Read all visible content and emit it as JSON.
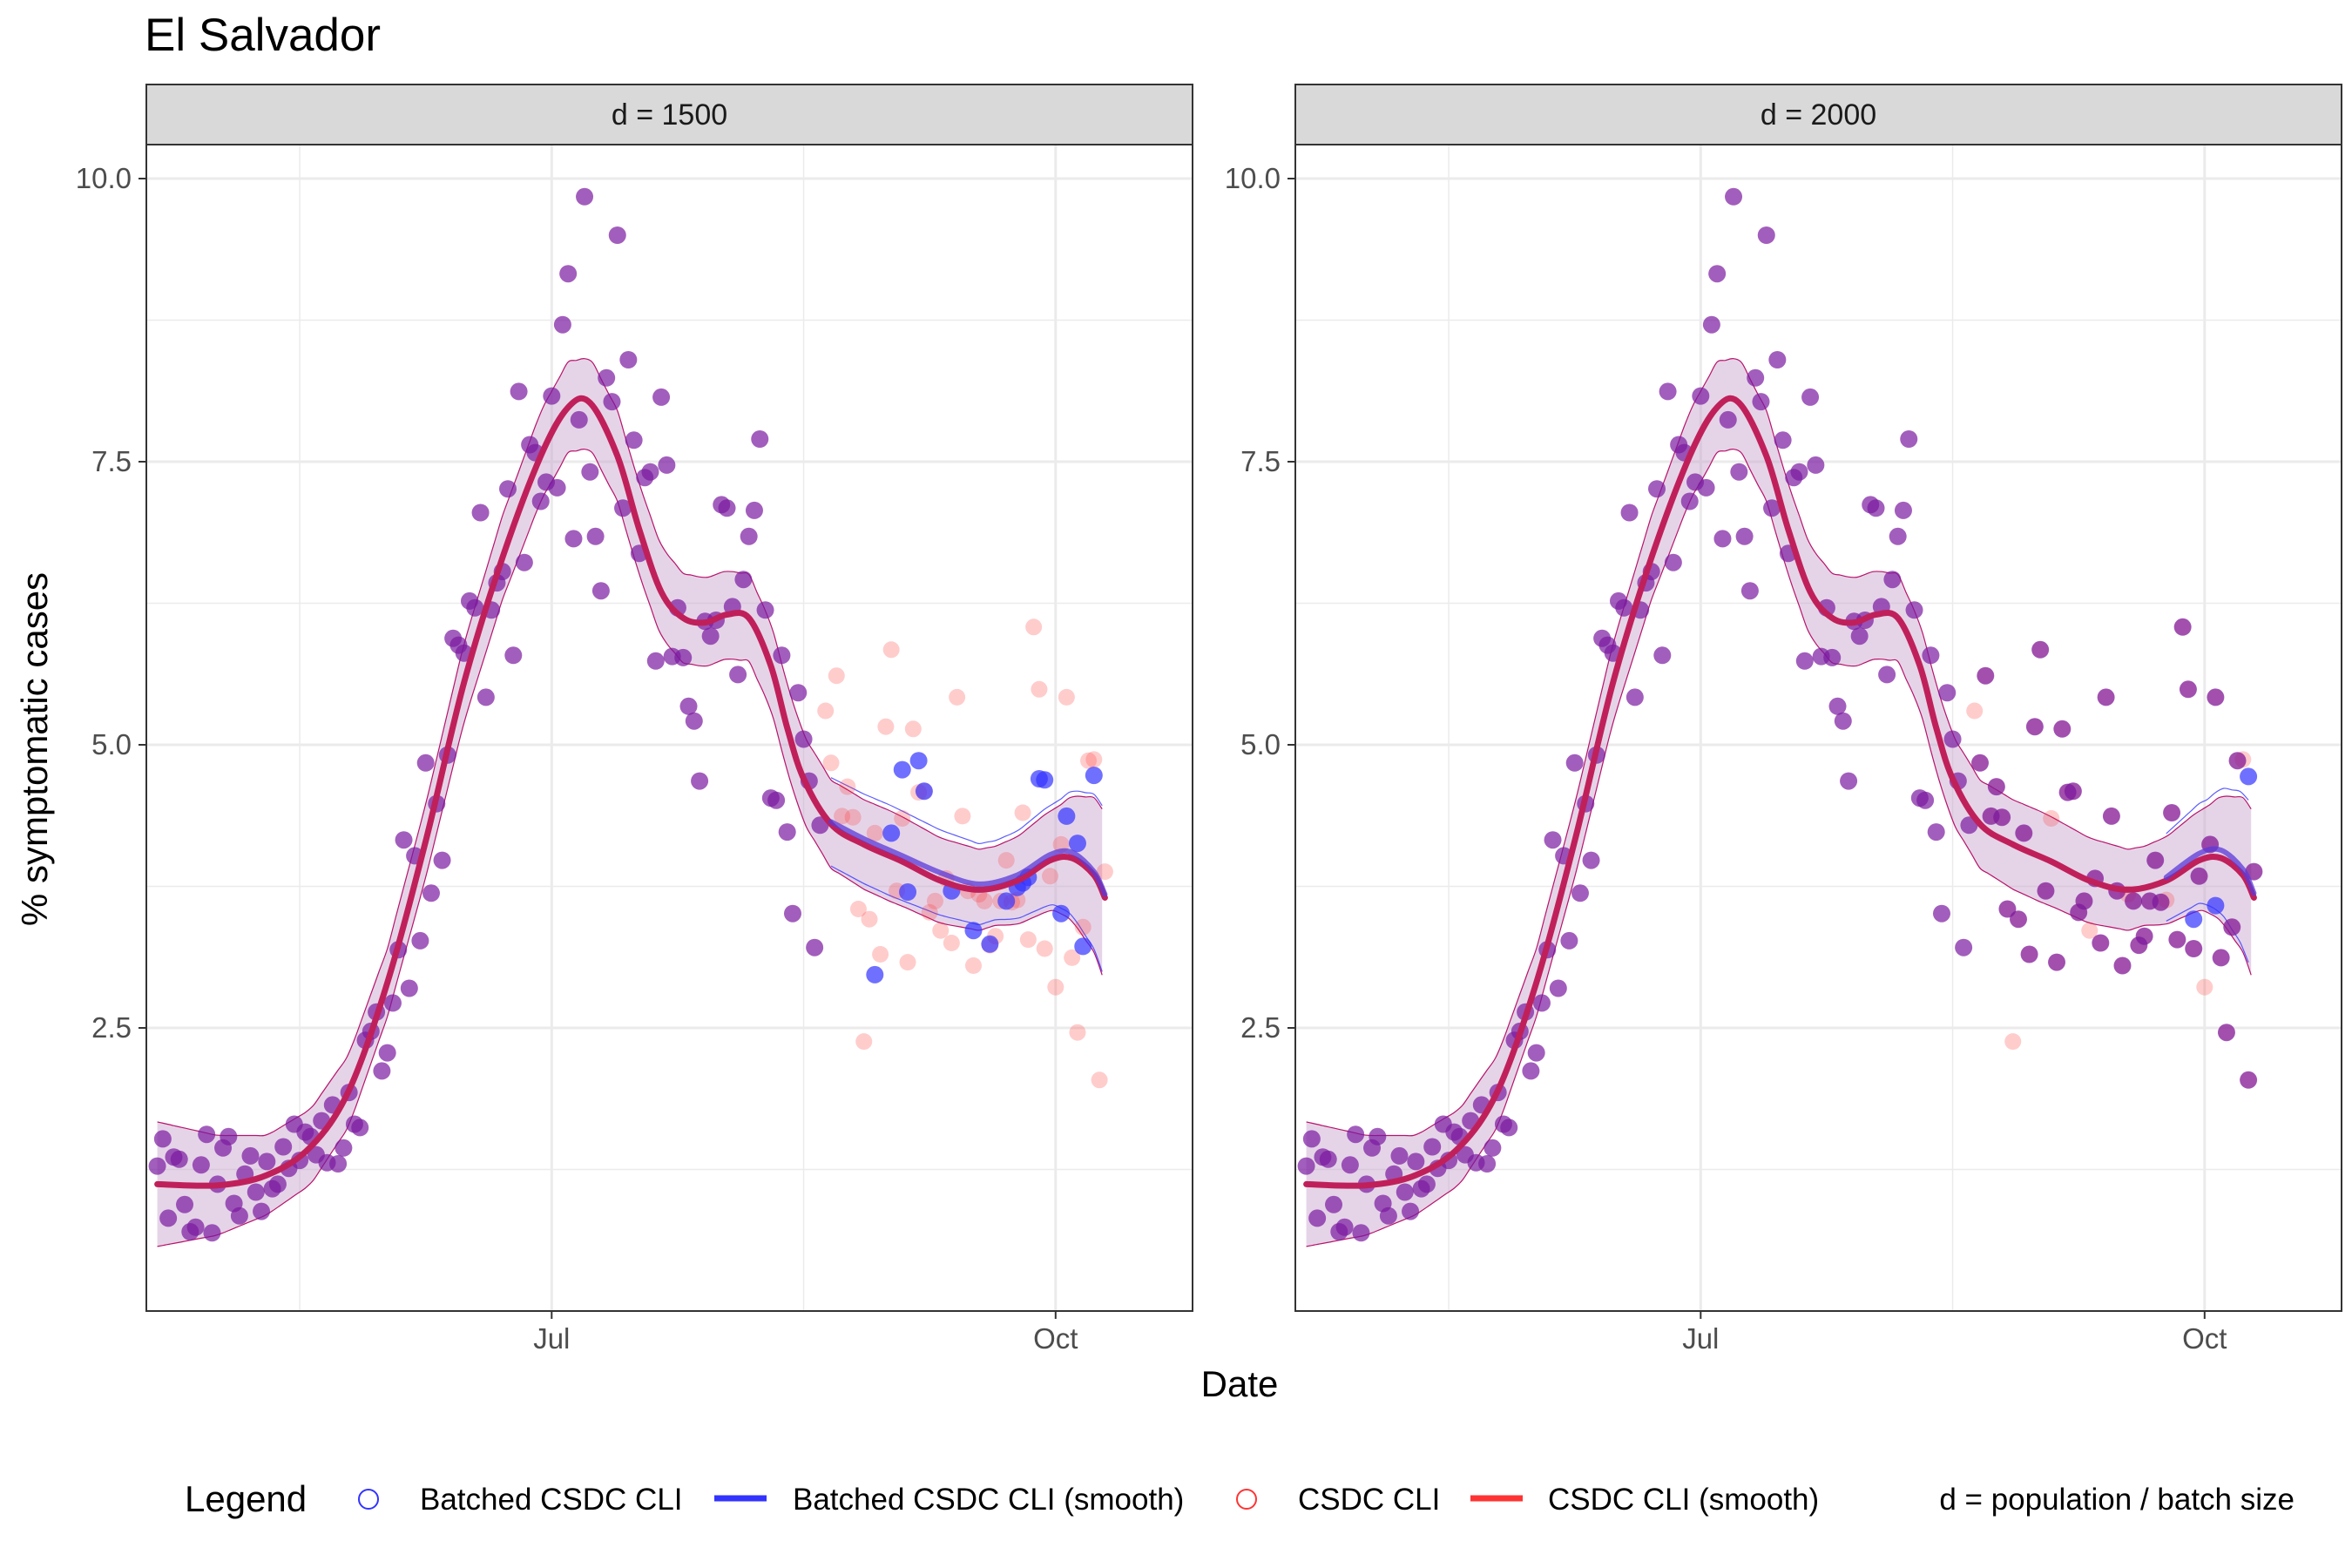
{
  "chart_data": {
    "type": "scatter",
    "title": "El Salvador",
    "xlabel": "Date",
    "ylabel": "% symptomatic cases",
    "x_ticks": [
      "Jul",
      "Oct"
    ],
    "y_ticks": [
      "2.5",
      "5.0",
      "7.5",
      "10.0"
    ],
    "ylim": [
      0,
      10.3
    ],
    "grid": true,
    "legend": {
      "title": "Legend",
      "position": "bottom",
      "note": "d = population / batch size",
      "entries": [
        {
          "label": "Batched CSDC CLI",
          "symbol": "point",
          "color": "#3333ff"
        },
        {
          "label": "Batched CSDC CLI (smooth)",
          "symbol": "line",
          "color": "#3333ff"
        },
        {
          "label": "CSDC CLI",
          "symbol": "point",
          "color": "#ff3333"
        },
        {
          "label": "CSDC CLI (smooth)",
          "symbol": "line",
          "color": "#ff3333"
        }
      ]
    },
    "colors": {
      "batched": "#3333ff",
      "csdc": "#ff3333",
      "overlap": "#7a1aa0",
      "band": "#c6a0cc"
    },
    "x_range": [
      "2020-04-18",
      "2020-10-26"
    ],
    "csdc_points": [
      [
        "2020-04-20",
        1.28
      ],
      [
        "2020-04-21",
        1.52
      ],
      [
        "2020-04-22",
        0.82
      ],
      [
        "2020-04-23",
        1.36
      ],
      [
        "2020-04-24",
        1.34
      ],
      [
        "2020-04-25",
        0.94
      ],
      [
        "2020-04-26",
        0.7
      ],
      [
        "2020-04-27",
        0.74
      ],
      [
        "2020-04-28",
        1.29
      ],
      [
        "2020-04-29",
        1.56
      ],
      [
        "2020-04-30",
        0.69
      ],
      [
        "2020-05-01",
        1.12
      ],
      [
        "2020-05-02",
        1.44
      ],
      [
        "2020-05-03",
        1.54
      ],
      [
        "2020-05-04",
        0.95
      ],
      [
        "2020-05-05",
        0.84
      ],
      [
        "2020-05-06",
        1.21
      ],
      [
        "2020-05-07",
        1.37
      ],
      [
        "2020-05-08",
        1.05
      ],
      [
        "2020-05-09",
        0.88
      ],
      [
        "2020-05-10",
        1.32
      ],
      [
        "2020-05-11",
        1.08
      ],
      [
        "2020-05-12",
        1.12
      ],
      [
        "2020-05-13",
        1.45
      ],
      [
        "2020-05-14",
        1.26
      ],
      [
        "2020-05-15",
        1.65
      ],
      [
        "2020-05-16",
        1.33
      ],
      [
        "2020-05-17",
        1.58
      ],
      [
        "2020-05-18",
        1.54
      ],
      [
        "2020-05-19",
        1.38
      ],
      [
        "2020-05-20",
        1.68
      ],
      [
        "2020-05-21",
        1.31
      ],
      [
        "2020-05-22",
        1.82
      ],
      [
        "2020-05-23",
        1.3
      ],
      [
        "2020-05-24",
        1.44
      ],
      [
        "2020-05-25",
        1.93
      ],
      [
        "2020-05-26",
        1.65
      ],
      [
        "2020-05-27",
        1.62
      ],
      [
        "2020-05-28",
        2.39
      ],
      [
        "2020-05-29",
        2.47
      ],
      [
        "2020-05-30",
        2.64
      ],
      [
        "2020-05-31",
        2.12
      ],
      [
        "2020-06-01",
        2.28
      ],
      [
        "2020-06-02",
        2.72
      ],
      [
        "2020-06-03",
        3.19
      ],
      [
        "2020-06-04",
        4.16
      ],
      [
        "2020-06-05",
        2.85
      ],
      [
        "2020-06-06",
        4.02
      ],
      [
        "2020-06-07",
        3.27
      ],
      [
        "2020-06-08",
        4.84
      ],
      [
        "2020-06-09",
        3.69
      ],
      [
        "2020-06-10",
        4.48
      ],
      [
        "2020-06-11",
        3.98
      ],
      [
        "2020-06-12",
        4.91
      ],
      [
        "2020-06-13",
        5.94
      ],
      [
        "2020-06-14",
        5.88
      ],
      [
        "2020-06-15",
        5.81
      ],
      [
        "2020-06-16",
        6.27
      ],
      [
        "2020-06-17",
        6.21
      ],
      [
        "2020-06-18",
        7.05
      ],
      [
        "2020-06-19",
        5.42
      ],
      [
        "2020-06-20",
        6.19
      ],
      [
        "2020-06-21",
        6.43
      ],
      [
        "2020-06-22",
        6.53
      ],
      [
        "2020-06-23",
        7.26
      ],
      [
        "2020-06-24",
        5.79
      ],
      [
        "2020-06-25",
        8.12
      ],
      [
        "2020-06-26",
        6.61
      ],
      [
        "2020-06-27",
        7.65
      ],
      [
        "2020-06-28",
        7.58
      ],
      [
        "2020-06-29",
        7.15
      ],
      [
        "2020-06-30",
        7.32
      ],
      [
        "2020-07-01",
        8.08
      ],
      [
        "2020-07-02",
        7.27
      ],
      [
        "2020-07-03",
        8.71
      ],
      [
        "2020-07-04",
        9.16
      ],
      [
        "2020-07-05",
        6.82
      ],
      [
        "2020-07-06",
        7.87
      ],
      [
        "2020-07-07",
        9.84
      ],
      [
        "2020-07-08",
        7.41
      ],
      [
        "2020-07-09",
        6.84
      ],
      [
        "2020-07-10",
        6.36
      ],
      [
        "2020-07-11",
        8.24
      ],
      [
        "2020-07-12",
        8.03
      ],
      [
        "2020-07-13",
        9.5
      ],
      [
        "2020-07-14",
        7.09
      ],
      [
        "2020-07-15",
        8.4
      ],
      [
        "2020-07-16",
        7.69
      ],
      [
        "2020-07-17",
        6.69
      ],
      [
        "2020-07-18",
        7.36
      ],
      [
        "2020-07-19",
        7.41
      ],
      [
        "2020-07-20",
        5.74
      ],
      [
        "2020-07-21",
        8.07
      ],
      [
        "2020-07-22",
        7.47
      ],
      [
        "2020-07-23",
        5.78
      ],
      [
        "2020-07-24",
        6.21
      ],
      [
        "2020-07-25",
        5.77
      ],
      [
        "2020-07-26",
        5.34
      ],
      [
        "2020-07-27",
        5.21
      ],
      [
        "2020-07-28",
        4.68
      ],
      [
        "2020-07-29",
        6.09
      ],
      [
        "2020-07-30",
        5.96
      ],
      [
        "2020-07-31",
        6.1
      ],
      [
        "2020-08-01",
        7.12
      ],
      [
        "2020-08-02",
        7.09
      ],
      [
        "2020-08-03",
        6.22
      ],
      [
        "2020-08-04",
        5.62
      ],
      [
        "2020-08-05",
        6.46
      ],
      [
        "2020-08-06",
        6.84
      ],
      [
        "2020-08-07",
        7.07
      ],
      [
        "2020-08-08",
        7.7
      ],
      [
        "2020-08-09",
        6.19
      ],
      [
        "2020-08-10",
        4.53
      ],
      [
        "2020-08-11",
        4.51
      ],
      [
        "2020-08-12",
        5.79
      ],
      [
        "2020-08-13",
        4.23
      ],
      [
        "2020-08-14",
        3.51
      ],
      [
        "2020-08-15",
        5.46
      ],
      [
        "2020-08-16",
        5.05
      ],
      [
        "2020-08-17",
        4.68
      ],
      [
        "2020-08-18",
        3.21
      ],
      [
        "2020-08-19",
        4.29
      ],
      [
        "2020-08-20",
        5.3
      ],
      [
        "2020-08-21",
        4.84
      ],
      [
        "2020-08-22",
        5.61
      ],
      [
        "2020-08-23",
        4.37
      ],
      [
        "2020-08-24",
        4.63
      ],
      [
        "2020-08-25",
        4.36
      ],
      [
        "2020-08-26",
        3.55
      ],
      [
        "2020-08-27",
        2.38
      ],
      [
        "2020-08-28",
        3.46
      ],
      [
        "2020-08-29",
        4.22
      ],
      [
        "2020-08-30",
        3.15
      ],
      [
        "2020-08-31",
        5.16
      ],
      [
        "2020-09-01",
        5.84
      ],
      [
        "2020-09-02",
        3.71
      ],
      [
        "2020-09-03",
        4.35
      ],
      [
        "2020-09-04",
        3.08
      ],
      [
        "2020-09-05",
        5.14
      ],
      [
        "2020-09-06",
        4.58
      ],
      [
        "2020-09-07",
        4.59
      ],
      [
        "2020-09-08",
        3.52
      ],
      [
        "2020-09-09",
        3.62
      ],
      [
        "2020-09-10",
        3.36
      ],
      [
        "2020-09-11",
        3.82
      ],
      [
        "2020-09-12",
        3.25
      ],
      [
        "2020-09-13",
        5.42
      ],
      [
        "2020-09-14",
        4.37
      ],
      [
        "2020-09-15",
        3.71
      ],
      [
        "2020-09-16",
        3.05
      ],
      [
        "2020-09-17",
        3.68
      ],
      [
        "2020-09-18",
        3.62
      ],
      [
        "2020-09-19",
        3.23
      ],
      [
        "2020-09-20",
        3.31
      ],
      [
        "2020-09-21",
        3.62
      ],
      [
        "2020-09-22",
        3.98
      ],
      [
        "2020-09-23",
        3.61
      ],
      [
        "2020-09-24",
        3.63
      ],
      [
        "2020-09-25",
        4.4
      ],
      [
        "2020-09-26",
        3.28
      ],
      [
        "2020-09-27",
        6.04
      ],
      [
        "2020-09-28",
        5.49
      ],
      [
        "2020-09-29",
        3.2
      ],
      [
        "2020-09-30",
        3.84
      ],
      [
        "2020-10-01",
        2.86
      ],
      [
        "2020-10-02",
        4.12
      ],
      [
        "2020-10-03",
        5.42
      ],
      [
        "2020-10-04",
        3.12
      ],
      [
        "2020-10-05",
        2.46
      ],
      [
        "2020-10-06",
        3.39
      ],
      [
        "2020-10-07",
        4.86
      ],
      [
        "2020-10-08",
        4.87
      ],
      [
        "2020-10-09",
        2.04
      ],
      [
        "2020-10-10",
        3.88
      ]
    ],
    "batched_points": {
      "d = 1500": [
        [
          "2020-08-29",
          2.97
        ],
        [
          "2020-09-01",
          4.22
        ],
        [
          "2020-09-03",
          4.78
        ],
        [
          "2020-09-04",
          3.7
        ],
        [
          "2020-09-06",
          4.86
        ],
        [
          "2020-09-07",
          4.59
        ],
        [
          "2020-09-12",
          3.71
        ],
        [
          "2020-09-16",
          3.36
        ],
        [
          "2020-09-19",
          3.24
        ],
        [
          "2020-09-22",
          3.62
        ],
        [
          "2020-09-24",
          3.74
        ],
        [
          "2020-09-25",
          3.78
        ],
        [
          "2020-09-26",
          3.83
        ],
        [
          "2020-09-28",
          4.7
        ],
        [
          "2020-09-29",
          4.69
        ],
        [
          "2020-10-02",
          3.51
        ],
        [
          "2020-10-03",
          4.37
        ],
        [
          "2020-10-05",
          4.13
        ],
        [
          "2020-10-06",
          3.22
        ],
        [
          "2020-10-08",
          4.73
        ]
      ],
      "d = 2000": [
        [
          "2020-09-29",
          3.46
        ],
        [
          "2020-10-03",
          3.58
        ],
        [
          "2020-10-09",
          4.72
        ]
      ]
    },
    "smooth_csdc": [
      [
        "2020-04-20",
        1.12
      ],
      [
        "2020-05-01",
        1.11
      ],
      [
        "2020-05-10",
        1.2
      ],
      [
        "2020-05-18",
        1.45
      ],
      [
        "2020-05-25",
        1.95
      ],
      [
        "2020-06-01",
        2.9
      ],
      [
        "2020-06-08",
        4.15
      ],
      [
        "2020-06-15",
        5.55
      ],
      [
        "2020-06-22",
        6.65
      ],
      [
        "2020-06-29",
        7.55
      ],
      [
        "2020-07-04",
        7.98
      ],
      [
        "2020-07-08",
        8.02
      ],
      [
        "2020-07-13",
        7.55
      ],
      [
        "2020-07-17",
        6.9
      ],
      [
        "2020-07-21",
        6.35
      ],
      [
        "2020-07-25",
        6.12
      ],
      [
        "2020-07-29",
        6.08
      ],
      [
        "2020-08-02",
        6.15
      ],
      [
        "2020-08-06",
        6.12
      ],
      [
        "2020-08-10",
        5.7
      ],
      [
        "2020-08-13",
        5.15
      ],
      [
        "2020-08-16",
        4.7
      ],
      [
        "2020-08-21",
        4.3
      ],
      [
        "2020-08-27",
        4.12
      ],
      [
        "2020-09-03",
        3.97
      ],
      [
        "2020-09-10",
        3.8
      ],
      [
        "2020-09-17",
        3.72
      ],
      [
        "2020-09-24",
        3.8
      ],
      [
        "2020-09-30",
        3.98
      ],
      [
        "2020-10-04",
        4.0
      ],
      [
        "2020-10-08",
        3.85
      ],
      [
        "2020-10-10",
        3.65
      ]
    ],
    "smooth_batched": {
      "d = 1500": [
        [
          "2020-08-21",
          4.32
        ],
        [
          "2020-08-27",
          4.17
        ],
        [
          "2020-09-03",
          4.02
        ],
        [
          "2020-09-10",
          3.87
        ],
        [
          "2020-09-17",
          3.77
        ],
        [
          "2020-09-24",
          3.85
        ],
        [
          "2020-09-30",
          4.03
        ],
        [
          "2020-10-04",
          4.05
        ],
        [
          "2020-10-08",
          3.88
        ],
        [
          "2020-10-10",
          3.68
        ]
      ],
      "d = 2000": [
        [
          "2020-09-24",
          3.83
        ],
        [
          "2020-09-30",
          4.04
        ],
        [
          "2020-10-04",
          4.07
        ],
        [
          "2020-10-08",
          3.9
        ],
        [
          "2020-10-10",
          3.69
        ]
      ]
    },
    "band_halfwidth": [
      [
        "2020-04-20",
        0.55
      ],
      [
        "2020-05-10",
        0.35
      ],
      [
        "2020-06-01",
        0.3
      ],
      [
        "2020-07-01",
        0.4
      ],
      [
        "2020-07-20",
        0.4
      ],
      [
        "2020-08-10",
        0.38
      ],
      [
        "2020-09-01",
        0.4
      ],
      [
        "2020-09-20",
        0.35
      ],
      [
        "2020-10-01",
        0.45
      ],
      [
        "2020-10-10",
        0.75
      ]
    ]
  },
  "panels": [
    {
      "strip_label": "d = 1500"
    },
    {
      "strip_label": "d = 2000"
    }
  ]
}
